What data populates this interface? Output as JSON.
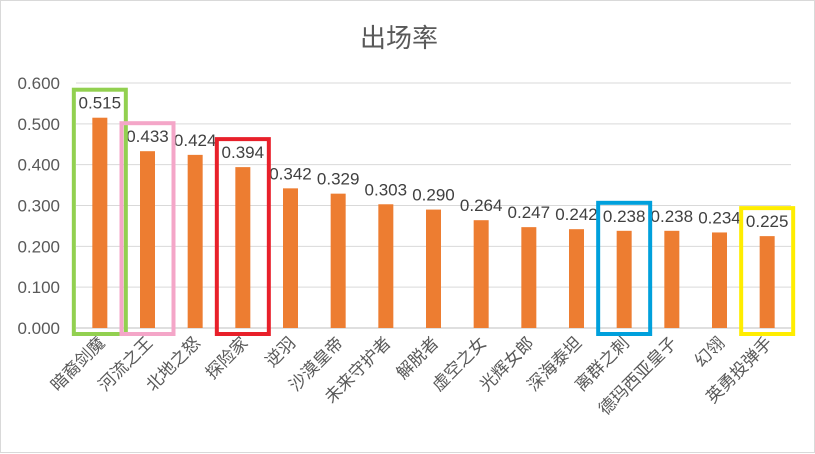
{
  "chart_data": {
    "type": "bar",
    "title": "出场率",
    "xlabel": "",
    "ylabel": "",
    "ylim": [
      0,
      0.6
    ],
    "yticks": [
      "0.000",
      "0.100",
      "0.200",
      "0.300",
      "0.400",
      "0.500",
      "0.600"
    ],
    "grid": true,
    "legend": "none",
    "categories": [
      "暗裔剑魔",
      "河流之王",
      "北地之怒",
      "探险家",
      "逆羽",
      "沙漠皇帝",
      "未来守护者",
      "解脱者",
      "虚空之女",
      "光辉女郎",
      "深海泰坦",
      "离群之刺",
      "德玛西亚皇子",
      "幻翎",
      "英勇投弹手"
    ],
    "values": [
      0.515,
      0.433,
      0.424,
      0.394,
      0.342,
      0.329,
      0.303,
      0.29,
      0.264,
      0.247,
      0.242,
      0.238,
      0.238,
      0.234,
      0.225
    ],
    "value_labels": [
      "0.515",
      "0.433",
      "0.424",
      "0.394",
      "0.342",
      "0.329",
      "0.303",
      "0.290",
      "0.264",
      "0.247",
      "0.242",
      "0.238",
      "0.238",
      "0.234",
      "0.225"
    ],
    "bar_color": "#ED7D31",
    "highlights": [
      {
        "category": "暗裔剑魔",
        "color": "#92D050"
      },
      {
        "category": "河流之王",
        "color": "#F4A6C8"
      },
      {
        "category": "探险家",
        "color": "#E8202A"
      },
      {
        "category": "离群之刺",
        "color": "#00A0DC"
      },
      {
        "category": "英勇投弹手",
        "color": "#FFED00"
      }
    ]
  }
}
